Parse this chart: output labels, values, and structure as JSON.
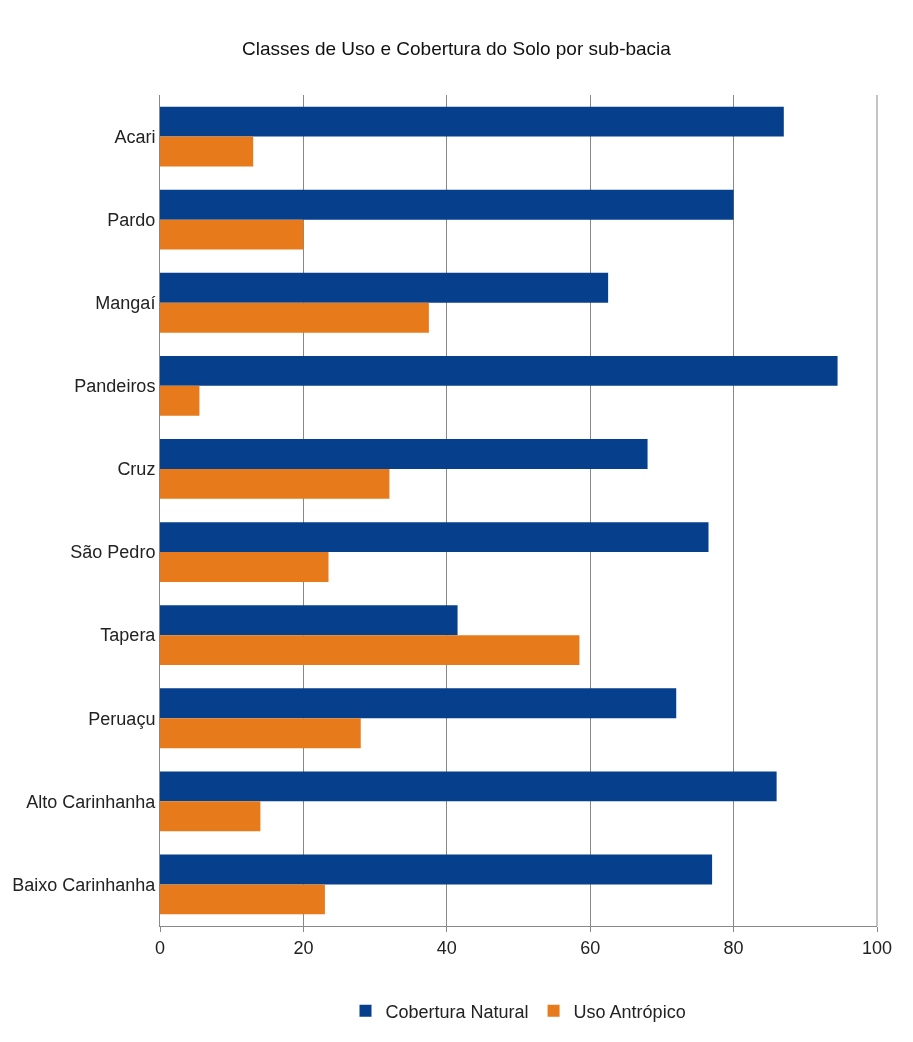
{
  "chart_data": {
    "type": "bar",
    "orientation": "horizontal",
    "title": "Classes de Uso e Cobertura do Solo por sub-bacia",
    "categories": [
      "Acari",
      "Pardo",
      "Mangaí",
      "Pandeiros",
      "Cruz",
      "São Pedro",
      "Tapera",
      "Peruaçu",
      "Alto Carinhanha",
      "Baixo Carinhanha"
    ],
    "series": [
      {
        "name": "Cobertura Natural",
        "color": "#063f8b",
        "values": [
          87,
          80,
          62.5,
          94.5,
          68,
          76.5,
          41.5,
          72,
          86,
          77
        ]
      },
      {
        "name": "Uso Antrópico",
        "color": "#e77b1c",
        "values": [
          13,
          20,
          37.5,
          5.5,
          32,
          23.5,
          58.5,
          28,
          14,
          23
        ]
      }
    ],
    "xlim": [
      0,
      100
    ],
    "xticks": [
      0,
      20,
      40,
      60,
      80,
      100
    ],
    "grid": "x",
    "legend": "bottom"
  }
}
